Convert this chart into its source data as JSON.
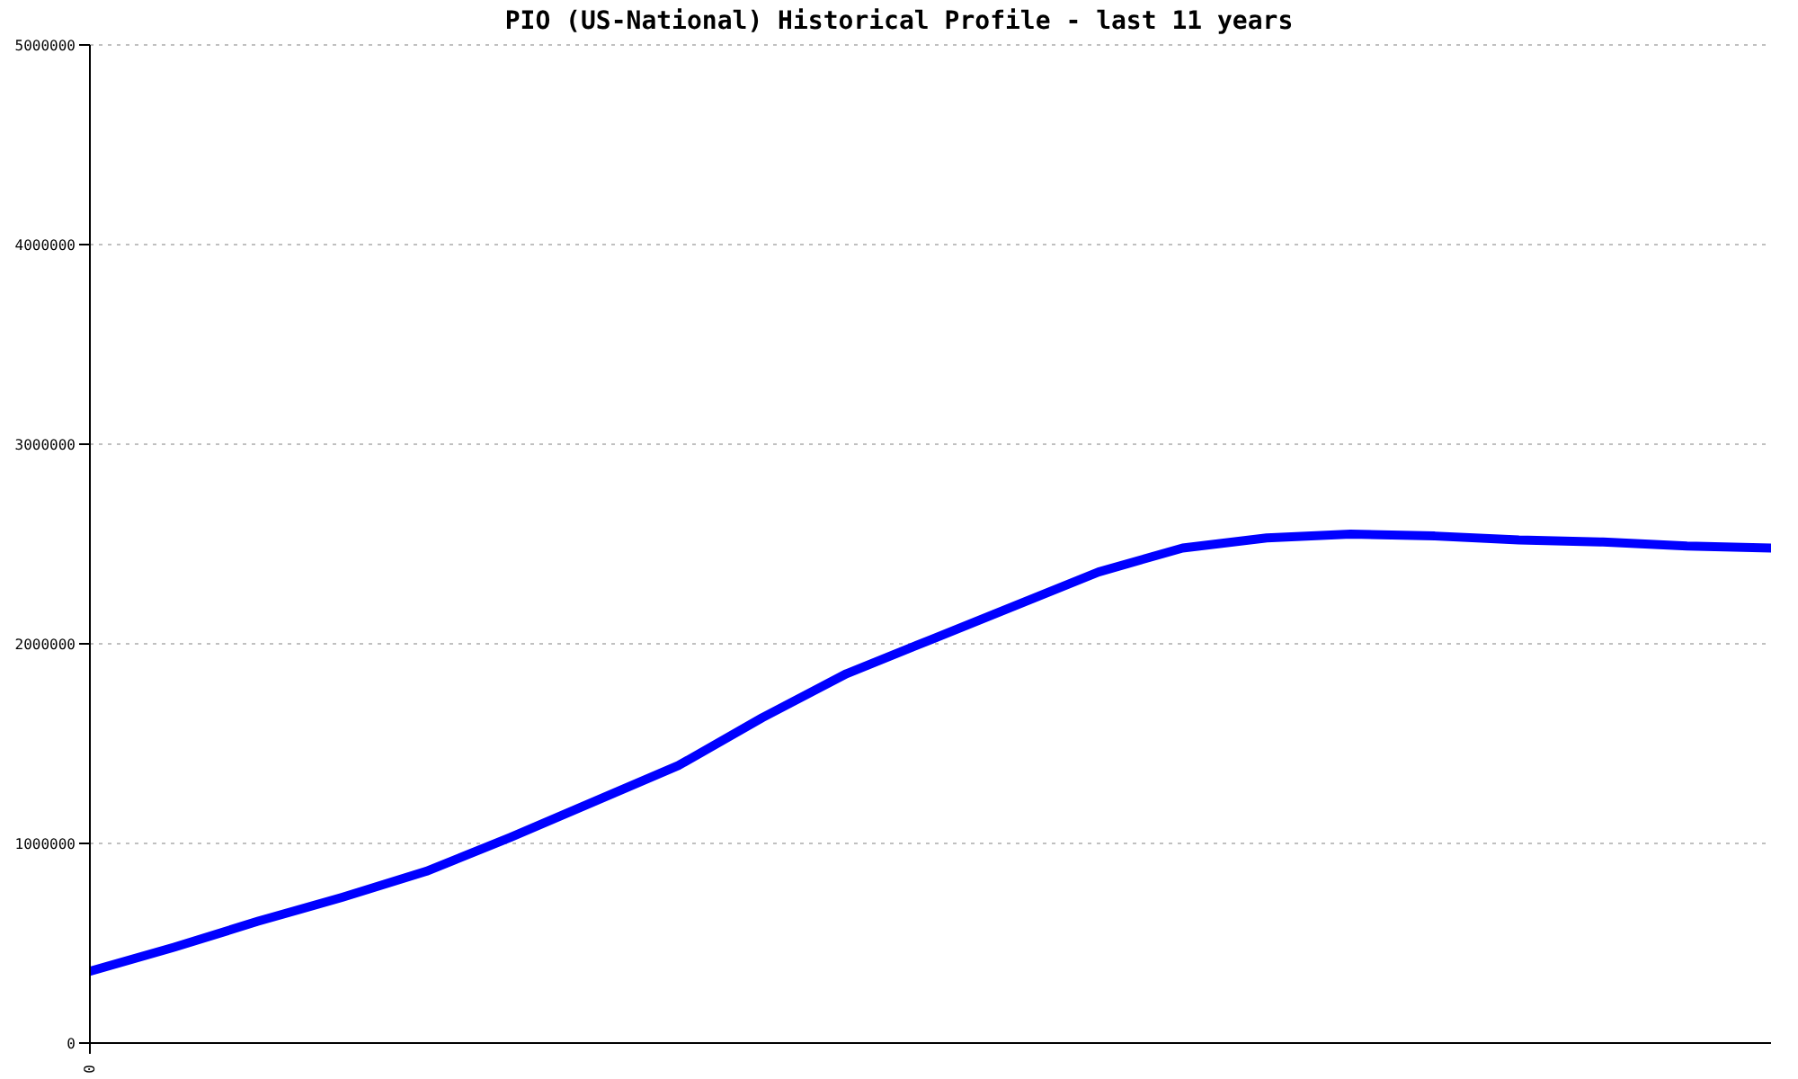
{
  "chart_data": {
    "type": "line",
    "title": "PIO (US-National) Historical Profile - last 11 years",
    "categories": [
      "0",
      null,
      null,
      null,
      null,
      null,
      null,
      null,
      null,
      null,
      null,
      null,
      null,
      null,
      null,
      null,
      null,
      null,
      null,
      null,
      null
    ],
    "series": [
      {
        "color": "#0000ff",
        "values": [
          360000,
          480000,
          610000,
          730000,
          860000,
          1030000,
          1210000,
          1390000,
          1630000,
          1850000,
          2020000,
          2190000,
          2360000,
          2480000,
          2530000,
          2550000,
          2540000,
          2520000,
          2510000,
          2490000,
          2480000
        ]
      }
    ],
    "ylim": [
      0,
      5000000
    ],
    "yticks": [
      0,
      1000000,
      2000000,
      3000000,
      4000000,
      5000000
    ],
    "grid": "y",
    "marker": "none",
    "line_style": "solid"
  }
}
